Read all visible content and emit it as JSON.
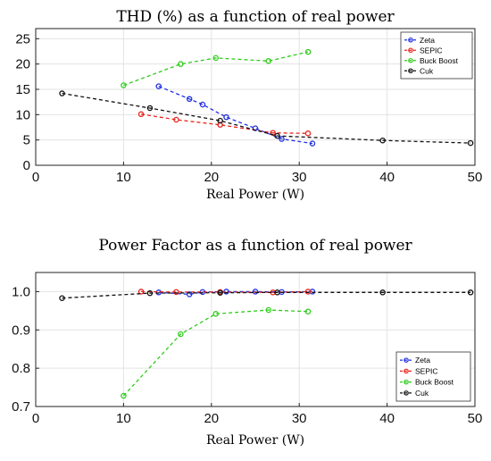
{
  "chart_data": [
    {
      "type": "line",
      "title": "THD (%) as a function of real power",
      "xlabel": "Real Power (W)",
      "ylabel": "",
      "xlim": [
        0,
        50
      ],
      "ylim": [
        0,
        27
      ],
      "xticks": [
        "0",
        "10",
        "20",
        "30",
        "40",
        "50"
      ],
      "yticks": [
        "0",
        "5",
        "10",
        "15",
        "20",
        "25"
      ],
      "grid": true,
      "legend_position": "top-right",
      "series": [
        {
          "name": "Zeta",
          "color": "#1f2fe0",
          "x": [
            14,
            17.5,
            19,
            21.7,
            25,
            28,
            31.5
          ],
          "y": [
            15.6,
            13.1,
            12.0,
            9.5,
            7.3,
            5.2,
            4.3
          ]
        },
        {
          "name": "SEPIC",
          "color": "#e8241c",
          "x": [
            12,
            16,
            21,
            27,
            31
          ],
          "y": [
            10.1,
            9.0,
            8.0,
            6.4,
            6.3
          ]
        },
        {
          "name": "Buck Boost",
          "color": "#2ecc1a",
          "x": [
            10,
            16.5,
            20.5,
            26.5,
            31
          ],
          "y": [
            15.8,
            20.0,
            21.2,
            20.6,
            22.4
          ]
        },
        {
          "name": "Cuk",
          "color": "#111111",
          "x": [
            3,
            13,
            21,
            27.5,
            39.5,
            49.5
          ],
          "y": [
            14.2,
            11.3,
            8.8,
            5.8,
            4.9,
            4.4
          ]
        }
      ]
    },
    {
      "type": "line",
      "title": "Power Factor as a function of real power",
      "xlabel": "Real Power (W)",
      "ylabel": "",
      "xlim": [
        0,
        50
      ],
      "ylim": [
        0.7,
        1.05
      ],
      "xticks": [
        "0",
        "10",
        "20",
        "30",
        "40",
        "50"
      ],
      "yticks": [
        "0.7",
        "0.8",
        "0.9",
        "1.0"
      ],
      "grid": true,
      "legend_position": "bottom-right",
      "series": [
        {
          "name": "Zeta",
          "color": "#1f2fe0",
          "x": [
            14,
            17.5,
            19,
            21.7,
            25,
            28,
            31.5
          ],
          "y": [
            0.998,
            0.993,
            0.999,
            1.0,
            1.0,
            0.999,
            1.0
          ]
        },
        {
          "name": "SEPIC",
          "color": "#e8241c",
          "x": [
            12,
            16,
            21,
            27,
            31
          ],
          "y": [
            1.0,
            0.999,
            0.999,
            0.998,
            1.0
          ]
        },
        {
          "name": "Buck Boost",
          "color": "#2ecc1a",
          "x": [
            10,
            16.5,
            20.5,
            26.5,
            31
          ],
          "y": [
            0.728,
            0.889,
            0.942,
            0.952,
            0.948
          ]
        },
        {
          "name": "Cuk",
          "color": "#111111",
          "x": [
            3,
            13,
            21,
            27.5,
            39.5,
            49.5
          ],
          "y": [
            0.983,
            0.996,
            0.997,
            0.998,
            0.998,
            0.998
          ]
        }
      ]
    }
  ]
}
